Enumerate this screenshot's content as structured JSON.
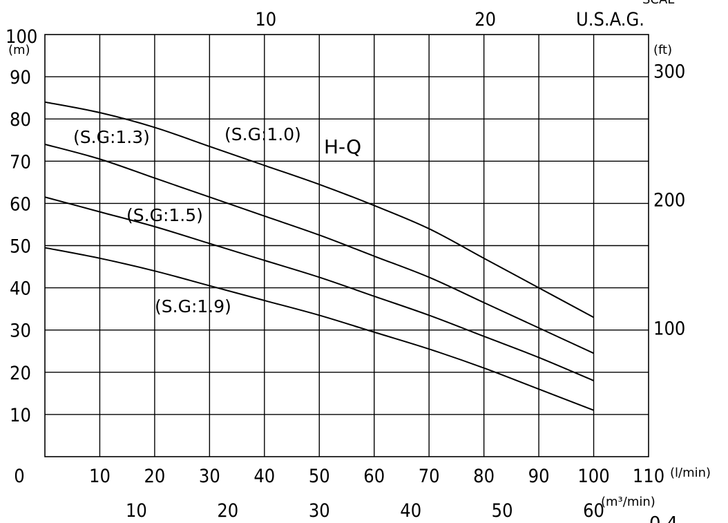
{
  "chart_data": {
    "type": "line",
    "title": "H-Q",
    "grid": true,
    "x": [
      0,
      10,
      20,
      30,
      40,
      50,
      60,
      70,
      80,
      90,
      100
    ],
    "xlim": [
      0,
      110
    ],
    "ylim": [
      0,
      100
    ],
    "xlabel_unit": "(l/min)",
    "ylabel_unit": "(m)",
    "x_ticks": [
      "0",
      "10",
      "20",
      "30",
      "40",
      "50",
      "60",
      "70",
      "80",
      "90",
      "100",
      "110"
    ],
    "y_ticks": [
      "10",
      "20",
      "30",
      "40",
      "50",
      "60",
      "70",
      "80",
      "90",
      "100"
    ],
    "secondary_x_bottom": {
      "unit": "(m³/min)",
      "ticks": [
        {
          "value": "10",
          "at_lmin": 16.67
        },
        {
          "value": "20",
          "at_lmin": 33.33
        },
        {
          "value": "30",
          "at_lmin": 50
        },
        {
          "value": "40",
          "at_lmin": 66.67
        },
        {
          "value": "50",
          "at_lmin": 83.33
        },
        {
          "value": "60",
          "at_lmin": 100
        }
      ]
    },
    "secondary_x_top": {
      "unit": "U.S.A.G.",
      "ticks": [
        {
          "value": "10",
          "at_lmin": 40
        },
        {
          "value": "20",
          "at_lmin": 80
        }
      ]
    },
    "secondary_y_right": {
      "unit": "(ft)",
      "ticks": [
        {
          "value": "100",
          "at_m": 30.5
        },
        {
          "value": "200",
          "at_m": 61
        },
        {
          "value": "300",
          "at_m": 91.4
        }
      ]
    },
    "series": [
      {
        "name": "(S.G:1.0)",
        "values": [
          84,
          81.5,
          78,
          73.5,
          69,
          64.5,
          59.5,
          54,
          47,
          40,
          33
        ]
      },
      {
        "name": "(S.G:1.3)",
        "values": [
          74,
          70.5,
          66,
          61.5,
          57,
          52.5,
          47.5,
          42.5,
          36.5,
          30.5,
          24.5
        ]
      },
      {
        "name": "(S.G:1.5)",
        "values": [
          61.5,
          58,
          54.5,
          50.5,
          46.5,
          42.5,
          38,
          33.5,
          28.5,
          23.5,
          18
        ]
      },
      {
        "name": "(S.G:1.9)",
        "values": [
          49.5,
          47,
          44,
          40.5,
          37,
          33.5,
          29.5,
          25.5,
          21,
          16,
          11
        ]
      }
    ],
    "cut_off_text": {
      "top_right": "SCAL",
      "bottom_right": "0.4"
    }
  }
}
